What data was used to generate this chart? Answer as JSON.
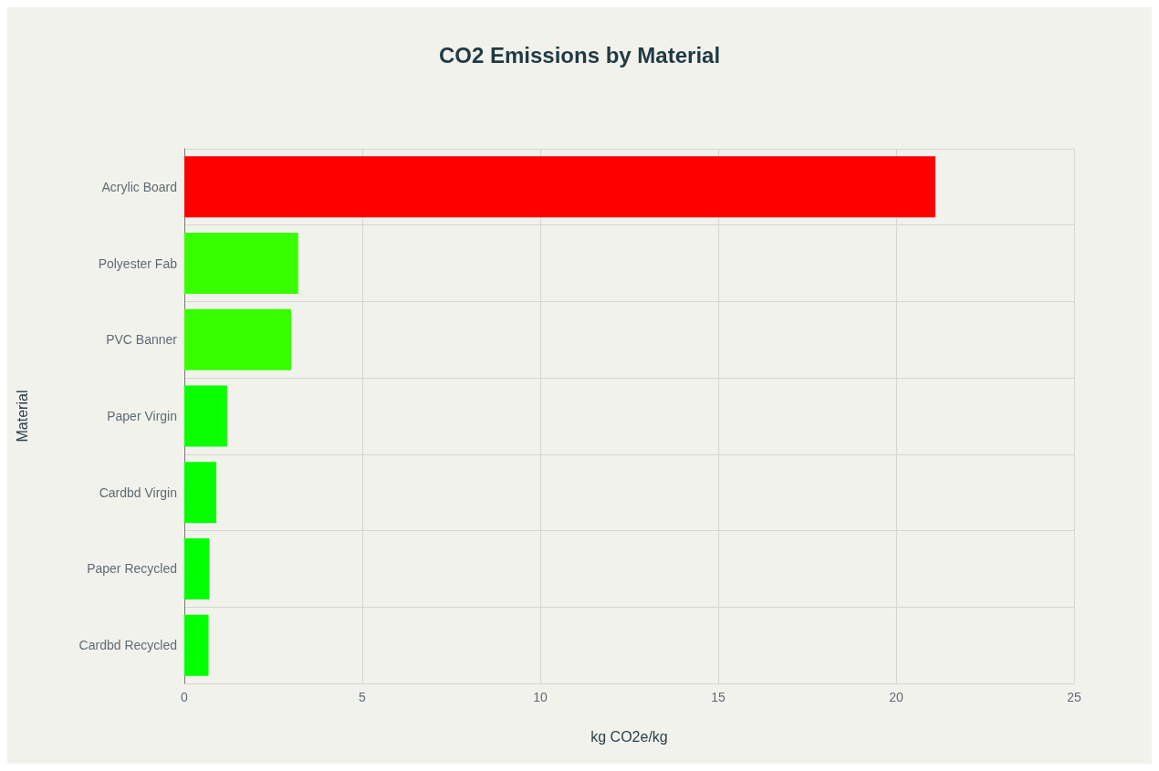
{
  "chart_data": {
    "type": "bar",
    "title": "CO2 Emissions by Material",
    "xlabel": "kg CO2e/kg",
    "ylabel": "Material",
    "orientation": "horizontal",
    "categories": [
      "Acrylic Board",
      "Polyester Fab",
      "PVC Banner",
      "Paper Virgin",
      "Cardbd Virgin",
      "Paper Recycled",
      "Cardbd Recycled"
    ],
    "values": [
      21.1,
      3.2,
      3.0,
      1.2,
      0.9,
      0.7,
      0.68
    ],
    "colors": [
      "#ff0000",
      "#38ff00",
      "#38ff00",
      "#0aff00",
      "#05ff00",
      "#00ff00",
      "#00ff00"
    ],
    "xlim": [
      0,
      25
    ],
    "xticks": [
      0,
      5,
      10,
      15,
      20,
      25
    ],
    "grid": true
  }
}
